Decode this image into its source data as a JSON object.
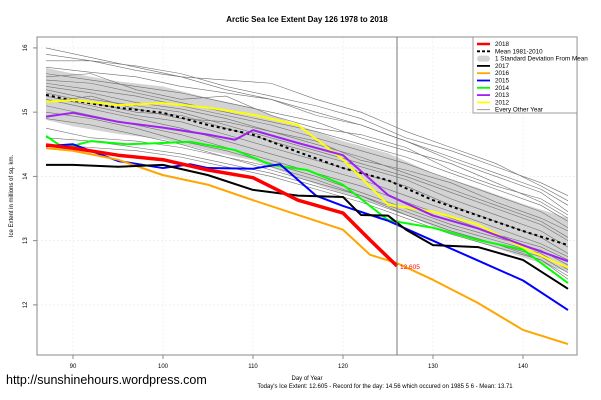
{
  "chart_data": {
    "type": "line",
    "title": "Arctic Sea Ice Extent Day 126 1978 to 2018",
    "xlabel": "Day of Year",
    "ylabel": "Ice Extent in millions of sq. km.",
    "xlim": [
      86,
      146
    ],
    "ylim": [
      11.22,
      16.17
    ],
    "xticks": [
      90,
      100,
      110,
      120,
      130,
      140
    ],
    "yticks": [
      12,
      13,
      14,
      15,
      16
    ],
    "grid": true,
    "legend_position": "top-right",
    "marker_day": 126,
    "annotation": {
      "x": 126,
      "y": 12.605,
      "text": "12.605",
      "color": "#ff0000"
    },
    "footer": "Today's Ice Extent: 12.605  - Record for the day: 14.56 which occured on 1985 5 6  - Mean: 13.71",
    "watermark": "http://sunshinehours.wordpress.com",
    "legend": [
      {
        "label": "2018",
        "color": "#ff0000",
        "style": "thick"
      },
      {
        "label": "Mean 1981-2010",
        "color": "#000000",
        "style": "dashed"
      },
      {
        "label": "1 Standard Deviation From Mean",
        "color": "#d3d3d3",
        "style": "band"
      },
      {
        "label": "2017",
        "color": "#000000",
        "style": "solid"
      },
      {
        "label": "2016",
        "color": "#ffa500",
        "style": "solid"
      },
      {
        "label": "2015",
        "color": "#0000ff",
        "style": "solid"
      },
      {
        "label": "2014",
        "color": "#00ff00",
        "style": "solid"
      },
      {
        "label": "2013",
        "color": "#a020f0",
        "style": "solid"
      },
      {
        "label": "2012",
        "color": "#ffff00",
        "style": "solid"
      },
      {
        "label": "Every Other Year",
        "color": "#808080",
        "style": "thin"
      }
    ],
    "mean": {
      "x": [
        87,
        90,
        95,
        100,
        105,
        110,
        115,
        120,
        125,
        130,
        135,
        140,
        145
      ],
      "y": [
        15.27,
        15.18,
        15.07,
        14.99,
        14.8,
        14.65,
        14.38,
        14.13,
        13.94,
        13.63,
        13.39,
        13.15,
        12.93
      ]
    },
    "std_band": {
      "x": [
        87,
        90,
        95,
        100,
        105,
        110,
        115,
        120,
        125,
        130,
        135,
        140,
        145
      ],
      "upper": [
        15.69,
        15.6,
        15.48,
        15.4,
        15.22,
        15.07,
        14.8,
        14.55,
        14.36,
        14.05,
        13.82,
        13.57,
        13.35
      ],
      "lower": [
        14.88,
        14.78,
        14.66,
        14.58,
        14.4,
        14.25,
        13.98,
        13.73,
        13.52,
        13.22,
        12.98,
        12.74,
        12.51
      ]
    },
    "series": [
      {
        "name": "2012",
        "color": "#ffff00",
        "x": [
          87,
          90,
          95,
          100,
          105,
          110,
          115,
          120,
          125,
          130,
          135,
          140,
          145
        ],
        "y": [
          15.16,
          15.19,
          15.11,
          15.14,
          15.07,
          14.96,
          14.8,
          14.26,
          13.56,
          13.45,
          13.25,
          12.89,
          12.58
        ]
      },
      {
        "name": "2013",
        "color": "#a020f0",
        "x": [
          87,
          90,
          95,
          100,
          105,
          108,
          110,
          115,
          120,
          125,
          130,
          135,
          140,
          145
        ],
        "y": [
          14.93,
          14.99,
          14.85,
          14.76,
          14.65,
          14.57,
          14.72,
          14.52,
          14.33,
          13.71,
          13.39,
          13.19,
          12.93,
          12.68
        ]
      },
      {
        "name": "2014",
        "color": "#00ff00",
        "x": [
          87,
          89,
          92,
          96,
          100,
          103,
          108,
          112,
          116,
          120,
          125,
          130,
          135,
          140,
          145
        ],
        "y": [
          14.63,
          14.44,
          14.55,
          14.5,
          14.52,
          14.54,
          14.41,
          14.18,
          14.1,
          13.87,
          13.32,
          13.2,
          13.01,
          12.86,
          12.34
        ]
      },
      {
        "name": "2015",
        "color": "#0000ff",
        "x": [
          87,
          90,
          95,
          100,
          103,
          105,
          110,
          113,
          117,
          120,
          125,
          130,
          135,
          140,
          145
        ],
        "y": [
          14.47,
          14.5,
          14.24,
          14.13,
          14.19,
          14.13,
          14.12,
          14.19,
          13.7,
          13.54,
          13.31,
          13.0,
          12.69,
          12.38,
          11.92
        ]
      },
      {
        "name": "2016",
        "color": "#ffa500",
        "x": [
          87,
          90,
          95,
          100,
          105,
          110,
          115,
          120,
          123,
          126,
          130,
          135,
          140,
          145
        ],
        "y": [
          14.44,
          14.4,
          14.26,
          14.02,
          13.87,
          13.63,
          13.4,
          13.17,
          12.78,
          12.65,
          12.39,
          12.03,
          11.61,
          11.39
        ]
      },
      {
        "name": "2017",
        "color": "#000000",
        "x": [
          87,
          90,
          95,
          100,
          105,
          110,
          115,
          120,
          122,
          125,
          127,
          130,
          135,
          140,
          145
        ],
        "y": [
          14.18,
          14.18,
          14.15,
          14.18,
          14.02,
          13.79,
          13.7,
          13.68,
          13.4,
          13.39,
          13.17,
          12.93,
          12.9,
          12.7,
          12.25
        ]
      },
      {
        "name": "2018",
        "color": "#ff0000",
        "x": [
          87,
          90,
          95,
          100,
          105,
          110,
          115,
          120,
          123,
          126
        ],
        "y": [
          14.49,
          14.44,
          14.33,
          14.26,
          14.1,
          13.98,
          13.63,
          13.43,
          13.01,
          12.605
        ]
      }
    ],
    "other_years": [
      [
        16.0,
        15.85,
        15.7,
        15.55,
        15.35,
        15.2,
        15.0,
        14.8,
        14.55,
        14.3,
        14.05,
        13.8,
        13.55
      ],
      [
        15.9,
        15.8,
        15.72,
        15.6,
        15.4,
        15.25,
        15.1,
        14.9,
        14.6,
        14.4,
        14.15,
        13.9,
        13.7
      ],
      [
        15.8,
        15.8,
        15.65,
        15.55,
        15.5,
        15.45,
        15.2,
        15.0,
        14.7,
        14.45,
        14.2,
        13.85,
        13.62
      ],
      [
        15.7,
        15.62,
        15.55,
        15.4,
        15.3,
        15.2,
        14.95,
        14.8,
        14.55,
        14.25,
        14.0,
        13.75,
        13.45
      ],
      [
        15.6,
        15.5,
        15.4,
        15.3,
        15.15,
        15.0,
        14.85,
        14.6,
        14.4,
        14.2,
        13.9,
        13.6,
        13.35
      ],
      [
        15.5,
        15.45,
        15.3,
        15.15,
        15.0,
        14.85,
        14.7,
        14.5,
        14.3,
        14.05,
        13.8,
        13.55,
        13.3
      ],
      [
        15.45,
        15.35,
        15.25,
        15.1,
        14.95,
        14.8,
        14.6,
        14.4,
        14.2,
        13.95,
        13.7,
        13.45,
        13.2
      ],
      [
        15.4,
        15.3,
        15.15,
        15.05,
        14.9,
        14.7,
        14.5,
        14.3,
        14.05,
        13.8,
        13.55,
        13.3,
        13.05
      ],
      [
        15.35,
        15.2,
        15.1,
        15.0,
        14.8,
        14.6,
        14.4,
        14.2,
        14.0,
        13.75,
        13.5,
        13.25,
        13.0
      ],
      [
        15.3,
        15.15,
        15.0,
        14.95,
        14.75,
        14.55,
        14.35,
        14.15,
        13.95,
        13.65,
        13.4,
        13.15,
        12.9
      ],
      [
        15.25,
        15.1,
        14.95,
        14.85,
        14.65,
        14.45,
        14.25,
        14.05,
        13.85,
        13.55,
        13.3,
        13.05,
        12.8
      ],
      [
        15.2,
        15.05,
        14.9,
        14.75,
        14.55,
        14.35,
        14.15,
        13.95,
        13.7,
        13.45,
        13.2,
        12.95,
        12.75
      ],
      [
        15.1,
        14.95,
        14.8,
        14.65,
        14.45,
        14.25,
        14.05,
        13.85,
        13.6,
        13.35,
        13.1,
        12.9,
        12.7
      ],
      [
        15.0,
        14.9,
        14.75,
        14.55,
        14.4,
        14.2,
        14.0,
        13.75,
        13.5,
        13.25,
        13.05,
        12.85,
        12.62
      ],
      [
        14.9,
        14.8,
        14.65,
        14.5,
        14.3,
        14.15,
        13.95,
        13.7,
        13.45,
        13.2,
        13.0,
        12.8,
        12.55
      ],
      [
        14.75,
        14.6,
        14.55,
        14.45,
        14.3,
        14.1,
        13.9,
        13.7,
        13.4,
        13.15,
        12.95,
        12.75,
        12.5
      ],
      [
        14.6,
        14.55,
        14.45,
        14.35,
        14.2,
        14.05,
        13.85,
        13.65,
        13.4,
        13.15,
        12.95,
        12.7,
        12.45
      ],
      [
        14.5,
        14.45,
        14.4,
        14.3,
        14.15,
        14.0,
        13.8,
        13.6,
        13.35,
        13.1,
        12.9,
        12.7,
        12.4
      ],
      [
        15.55,
        15.6,
        15.35,
        15.2,
        15.25,
        14.95,
        14.75,
        14.65,
        14.45,
        14.1,
        13.85,
        13.65,
        13.4
      ],
      [
        15.15,
        15.25,
        15.05,
        14.9,
        14.85,
        14.7,
        14.55,
        14.25,
        14.1,
        13.9,
        13.6,
        13.35,
        13.15
      ]
    ],
    "other_years_x": [
      87,
      92,
      97,
      102,
      107,
      112,
      117,
      122,
      127,
      132,
      137,
      142,
      145
    ]
  }
}
